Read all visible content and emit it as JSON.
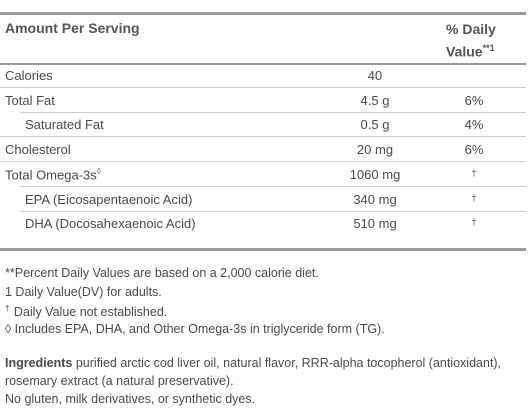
{
  "header": {
    "amount_label": "Amount Per Serving",
    "dv_label_line1": "% Daily",
    "dv_label_line2": "Value",
    "dv_label_mark": "**1"
  },
  "rows": [
    {
      "name": "Calories",
      "amount": "40",
      "dv": "",
      "indent": false
    },
    {
      "name": "Total Fat",
      "amount": "4.5 g",
      "dv": "6%",
      "indent": false
    },
    {
      "name": "Saturated Fat",
      "amount": "0.5 g",
      "dv": "4%",
      "indent": true
    },
    {
      "name": "Cholesterol",
      "amount": "20 mg",
      "dv": "6%",
      "indent": false
    },
    {
      "name": "Total Omega-3s",
      "name_mark": "◊",
      "amount": "1060 mg",
      "dv": "†",
      "indent": false
    },
    {
      "name": "EPA (Eicosapentaenoic Acid)",
      "amount": "340 mg",
      "dv": "†",
      "indent": true
    },
    {
      "name": "DHA (Docosahexaenoic Acid)",
      "amount": "510 mg",
      "dv": "†",
      "indent": true
    }
  ],
  "footnotes": {
    "percent_note": "**Percent Daily Values are based on a 2,000 calorie diet.",
    "dv_adults_note": "1 Daily Value(DV) for adults.",
    "dagger_mark": "†",
    "dagger_note": " Daily Value not established.",
    "diamond_note": "◊ Includes EPA, DHA, and Other Omega-3s in triglyceride form (TG)."
  },
  "ingredients": {
    "label": "Ingredients",
    "text": " purified arctic cod liver oil, natural flavor, RRR-alpha tocopherol (antioxidant), rosemary extract (a natural preservative).",
    "note": "No gluten, milk derivatives, or synthetic dyes."
  }
}
